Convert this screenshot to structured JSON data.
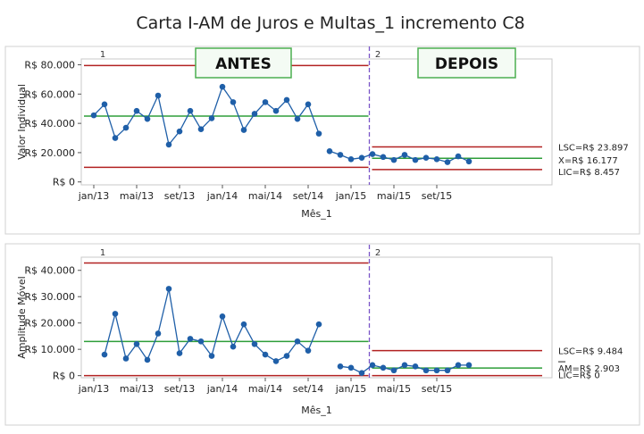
{
  "title": "Carta I-AM de Juros e Multas_1 incremento C8",
  "colors": {
    "data": "#1f5fa8",
    "center": "#2e9e3a",
    "limit": "#b22222",
    "divider": "#7a55c8",
    "panel_border": "#c8c8c8",
    "box_border": "#4caf50",
    "box_fill": "#f4fbf4"
  },
  "tick_labels": [
    "jan/13",
    "mai/13",
    "set/13",
    "jan/14",
    "mai/14",
    "set/14",
    "jan/15",
    "mai/15",
    "set/15"
  ],
  "tick_index": [
    0,
    4,
    8,
    12,
    16,
    20,
    24,
    28,
    32
  ],
  "xlabel": "Mês_1",
  "chart_data": [
    {
      "type": "line",
      "name": "I chart",
      "ylabel": "Valor Individual",
      "ylim": [
        -2000,
        84000
      ],
      "y_ticks": [
        0,
        20000,
        40000,
        60000,
        80000
      ],
      "y_tick_labels": [
        "R$ 0",
        "R$ 20.000",
        "R$ 40.000",
        "R$ 60.000",
        "R$ 80.000"
      ],
      "stage_labels": [
        "1",
        "2"
      ],
      "box_labels": [
        "ANTES",
        "DEPOIS"
      ],
      "stage1": {
        "values": [
          45500,
          53000,
          30000,
          37000,
          48500,
          43000,
          59000,
          25500,
          34500,
          48500,
          36000,
          43500,
          65000,
          54500,
          35500,
          46500,
          54500,
          48500,
          56000,
          43000,
          53000,
          33000
        ],
        "center": 45000,
        "ucl": 79500,
        "lcl": 10000
      },
      "stage2": {
        "values": [
          21000,
          18500,
          15500,
          16500,
          19000,
          17000,
          15000,
          18500,
          15000,
          16500,
          15500,
          13500,
          17500,
          14000
        ],
        "center": 16177,
        "ucl": 23897,
        "lcl": 8457
      },
      "right_labels": [
        "LSC=R$ 23.897",
        "X=R$ 16.177",
        "LIC=R$ 8.457"
      ]
    },
    {
      "type": "line",
      "name": "MR chart",
      "ylabel": "Amplitude Móvel",
      "ylim": [
        -800,
        45000
      ],
      "y_ticks": [
        0,
        10000,
        20000,
        30000,
        40000
      ],
      "y_tick_labels": [
        "R$ 0",
        "R$ 10.000",
        "R$ 20.000",
        "R$ 30.000",
        "R$ 40.000"
      ],
      "stage_labels": [
        "1",
        "2"
      ],
      "stage1": {
        "values": [
          null,
          8000,
          23500,
          6500,
          12000,
          6000,
          16000,
          33000,
          8500,
          14000,
          13000,
          7500,
          22500,
          11000,
          19500,
          12000,
          8000,
          5500,
          7500,
          13000,
          9500,
          19500
        ],
        "center": 13000,
        "ucl": 42800,
        "lcl": 0
      },
      "stage2": {
        "values": [
          null,
          3500,
          3000,
          1000,
          4000,
          3000,
          2000,
          4000,
          3500,
          2000,
          2000,
          2000,
          4000,
          4000
        ],
        "center": 2903,
        "ucl": 9484,
        "lcl": 0
      },
      "right_labels": [
        "LSC=R$ 9.484",
        "AM=R$ 2.903",
        "LIC=R$ 0"
      ]
    }
  ]
}
